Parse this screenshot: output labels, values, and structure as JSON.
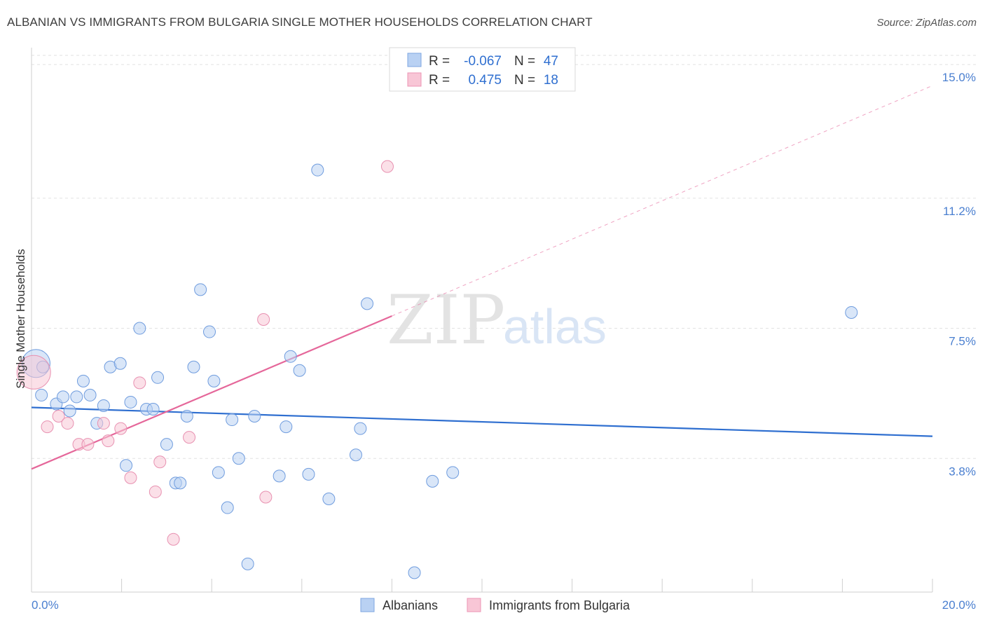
{
  "title": "ALBANIAN VS IMMIGRANTS FROM BULGARIA SINGLE MOTHER HOUSEHOLDS CORRELATION CHART",
  "source": "Source: ZipAtlas.com",
  "colors": {
    "blue": "#2f6fd0",
    "blue_fill": "#b9d1f3",
    "pink": "#e5679a",
    "pink_fill": "#f8c6d6",
    "tick": "#4a7fd0"
  },
  "watermark": {
    "zip": "ZIP",
    "atlas": "atlas"
  },
  "legend": {
    "rows": [
      {
        "r_label": "R =",
        "r_value": "-0.067",
        "n_label": "N =",
        "n_value": "47",
        "color": "blue"
      },
      {
        "r_label": "R =",
        "r_value": "0.475",
        "n_label": "N =",
        "n_value": "18",
        "color": "pink"
      }
    ]
  },
  "chart_data": {
    "type": "scatter",
    "title": "ALBANIAN VS IMMIGRANTS FROM BULGARIA SINGLE MOTHER HOUSEHOLDS CORRELATION CHART",
    "xlabel": "",
    "ylabel": "Single Mother Households",
    "xlim": [
      0,
      20
    ],
    "ylim": [
      0,
      15.4
    ],
    "y_ticks": [
      3.8,
      7.5,
      11.2,
      15.0
    ],
    "y_tick_labels": [
      "3.8%",
      "7.5%",
      "11.2%",
      "15.0%"
    ],
    "x_tick_labels": [
      "0.0%",
      "20.0%"
    ],
    "grid": "horizontal dashed",
    "legend_position": "top-center",
    "series": [
      {
        "name": "Albanians",
        "color": "blue",
        "points": [
          [
            0.1,
            6.5
          ],
          [
            0.25,
            6.4
          ],
          [
            0.22,
            5.6
          ],
          [
            0.55,
            5.35
          ],
          [
            0.7,
            5.55
          ],
          [
            0.85,
            5.15
          ],
          [
            1.0,
            5.55
          ],
          [
            1.15,
            6.0
          ],
          [
            1.3,
            5.6
          ],
          [
            1.45,
            4.8
          ],
          [
            1.6,
            5.3
          ],
          [
            1.75,
            6.4
          ],
          [
            1.97,
            6.5
          ],
          [
            2.1,
            3.6
          ],
          [
            2.2,
            5.4
          ],
          [
            2.4,
            7.5
          ],
          [
            2.55,
            5.2
          ],
          [
            2.7,
            5.2
          ],
          [
            2.8,
            6.1
          ],
          [
            3.0,
            4.2
          ],
          [
            3.2,
            3.1
          ],
          [
            3.3,
            3.1
          ],
          [
            3.45,
            5.0
          ],
          [
            3.6,
            6.4
          ],
          [
            3.75,
            8.6
          ],
          [
            3.95,
            7.4
          ],
          [
            4.05,
            6.0
          ],
          [
            4.15,
            3.4
          ],
          [
            4.35,
            2.4
          ],
          [
            4.45,
            4.9
          ],
          [
            4.6,
            3.8
          ],
          [
            4.8,
            0.8
          ],
          [
            4.95,
            5.0
          ],
          [
            5.5,
            3.3
          ],
          [
            5.65,
            4.7
          ],
          [
            5.75,
            6.7
          ],
          [
            5.95,
            6.3
          ],
          [
            6.15,
            3.35
          ],
          [
            6.35,
            12.0
          ],
          [
            6.6,
            2.65
          ],
          [
            7.2,
            3.9
          ],
          [
            7.3,
            4.65
          ],
          [
            7.45,
            8.2
          ],
          [
            8.5,
            0.55
          ],
          [
            8.9,
            3.15
          ],
          [
            9.35,
            3.4
          ],
          [
            18.2,
            7.95
          ]
        ],
        "trend": {
          "x": [
            0,
            20
          ],
          "y": [
            5.25,
            4.43
          ],
          "style": "solid"
        }
      },
      {
        "name": "Immigrants from Bulgaria",
        "color": "pink",
        "points": [
          [
            0.05,
            6.25
          ],
          [
            0.35,
            4.7
          ],
          [
            0.6,
            5.0
          ],
          [
            0.8,
            4.8
          ],
          [
            1.05,
            4.2
          ],
          [
            1.25,
            4.2
          ],
          [
            1.6,
            4.8
          ],
          [
            1.7,
            4.3
          ],
          [
            1.98,
            4.65
          ],
          [
            2.2,
            3.25
          ],
          [
            2.4,
            5.95
          ],
          [
            2.75,
            2.85
          ],
          [
            2.85,
            3.7
          ],
          [
            3.15,
            1.5
          ],
          [
            3.5,
            4.4
          ],
          [
            5.15,
            7.75
          ],
          [
            5.2,
            2.7
          ],
          [
            7.9,
            12.1
          ]
        ],
        "trend": {
          "x": [
            0,
            8.0,
            20
          ],
          "y": [
            3.5,
            7.85,
            14.4
          ],
          "style": "solid then dashed"
        }
      }
    ]
  },
  "bottom_legend": [
    "Albanians",
    "Immigrants from Bulgaria"
  ]
}
